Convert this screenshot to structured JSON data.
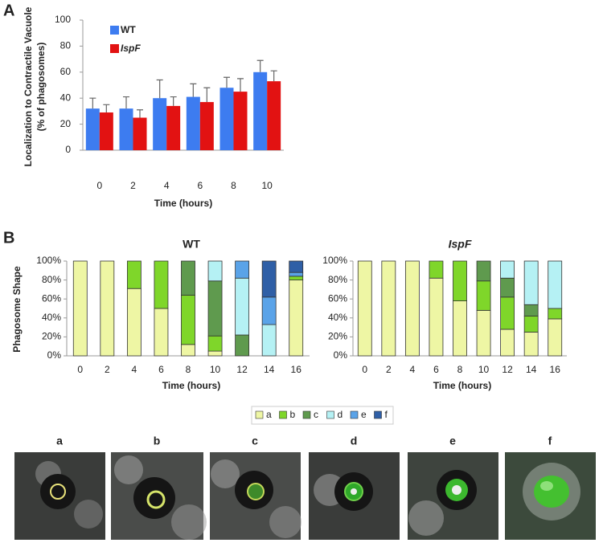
{
  "panel_labels": [
    "A",
    "B"
  ],
  "chart_data": [
    {
      "type": "bar",
      "x_label": "Time (hours)",
      "y_label": [
        "Localization to Contractile Vacuole",
        "(% of phagosomes)"
      ],
      "categories": [
        "0",
        "2",
        "4",
        "6",
        "8",
        "10"
      ],
      "series": [
        {
          "name": "WT",
          "color": "#3d7cf0",
          "values": [
            32,
            32,
            40,
            41,
            48,
            60
          ],
          "errors": [
            8,
            9,
            14,
            10,
            8,
            9
          ]
        },
        {
          "name": "IspF",
          "color": "#e21212",
          "values": [
            29,
            25,
            34,
            37,
            45,
            53
          ],
          "errors": [
            6,
            6,
            7,
            11,
            10,
            8
          ]
        }
      ],
      "ylim": [
        0,
        100
      ],
      "yticks": [
        0,
        20,
        40,
        60,
        80,
        100
      ]
    },
    {
      "type": "stacked-bar",
      "title": "WT",
      "x_label": "Time (hours)",
      "y_label": "Phagosome Shape",
      "categories": [
        "0",
        "2",
        "4",
        "6",
        "8",
        "10",
        "12",
        "14",
        "16"
      ],
      "series": [
        {
          "name": "a",
          "color": "#eef6a4",
          "values": [
            100,
            100,
            71,
            50,
            12,
            5,
            0,
            0,
            80
          ]
        },
        {
          "name": "b",
          "color": "#7fd62a",
          "values": [
            0,
            0,
            29,
            50,
            52,
            16,
            0,
            0,
            4
          ]
        },
        {
          "name": "c",
          "color": "#5f9a4e",
          "values": [
            0,
            0,
            0,
            0,
            36,
            58,
            22,
            0,
            0
          ]
        },
        {
          "name": "d",
          "color": "#b5f1f4",
          "values": [
            0,
            0,
            0,
            0,
            0,
            21,
            60,
            33,
            0
          ]
        },
        {
          "name": "e",
          "color": "#5aa3e8",
          "values": [
            0,
            0,
            0,
            0,
            0,
            0,
            18,
            29,
            4
          ]
        },
        {
          "name": "f",
          "color": "#2f5fa6",
          "values": [
            0,
            0,
            0,
            0,
            0,
            0,
            0,
            38,
            12
          ]
        }
      ],
      "ylim": [
        0,
        100
      ],
      "yticks": [
        {
          "value": 0,
          "label": "0%"
        },
        {
          "value": 20,
          "label": "20%"
        },
        {
          "value": 40,
          "label": "40%"
        },
        {
          "value": 60,
          "label": "60%"
        },
        {
          "value": 80,
          "label": "80%"
        },
        {
          "value": 100,
          "label": "100%"
        }
      ]
    },
    {
      "type": "stacked-bar",
      "title": "IspF",
      "x_label": "Time (hours)",
      "categories": [
        "0",
        "2",
        "4",
        "6",
        "8",
        "10",
        "12",
        "14",
        "16"
      ],
      "series": [
        {
          "color": "#eef6a4",
          "values": [
            100,
            100,
            100,
            82,
            58,
            48,
            28,
            25,
            39
          ]
        },
        {
          "color": "#7fd62a",
          "values": [
            0,
            0,
            0,
            18,
            42,
            31,
            34,
            17,
            11
          ]
        },
        {
          "color": "#5f9a4e",
          "values": [
            0,
            0,
            0,
            0,
            0,
            21,
            20,
            12,
            0
          ]
        },
        {
          "color": "#b5f1f4",
          "values": [
            0,
            0,
            0,
            0,
            0,
            0,
            18,
            46,
            50
          ]
        },
        {
          "color": "#5aa3e8",
          "values": [
            0,
            0,
            0,
            0,
            0,
            0,
            0,
            0,
            0
          ]
        },
        {
          "color": "#2f5fa6",
          "values": [
            0,
            0,
            0,
            0,
            0,
            0,
            0,
            0,
            0
          ]
        }
      ],
      "ylim": [
        0,
        100
      ],
      "yticks": [
        {
          "value": 0,
          "label": "0%"
        },
        {
          "value": 20,
          "label": "20%"
        },
        {
          "value": 40,
          "label": "40%"
        },
        {
          "value": 60,
          "label": "60%"
        },
        {
          "value": 80,
          "label": "80%"
        },
        {
          "value": 100,
          "label": "100%"
        }
      ]
    }
  ],
  "images": {
    "labels": [
      "a",
      "b",
      "c",
      "d",
      "e",
      "f"
    ]
  }
}
